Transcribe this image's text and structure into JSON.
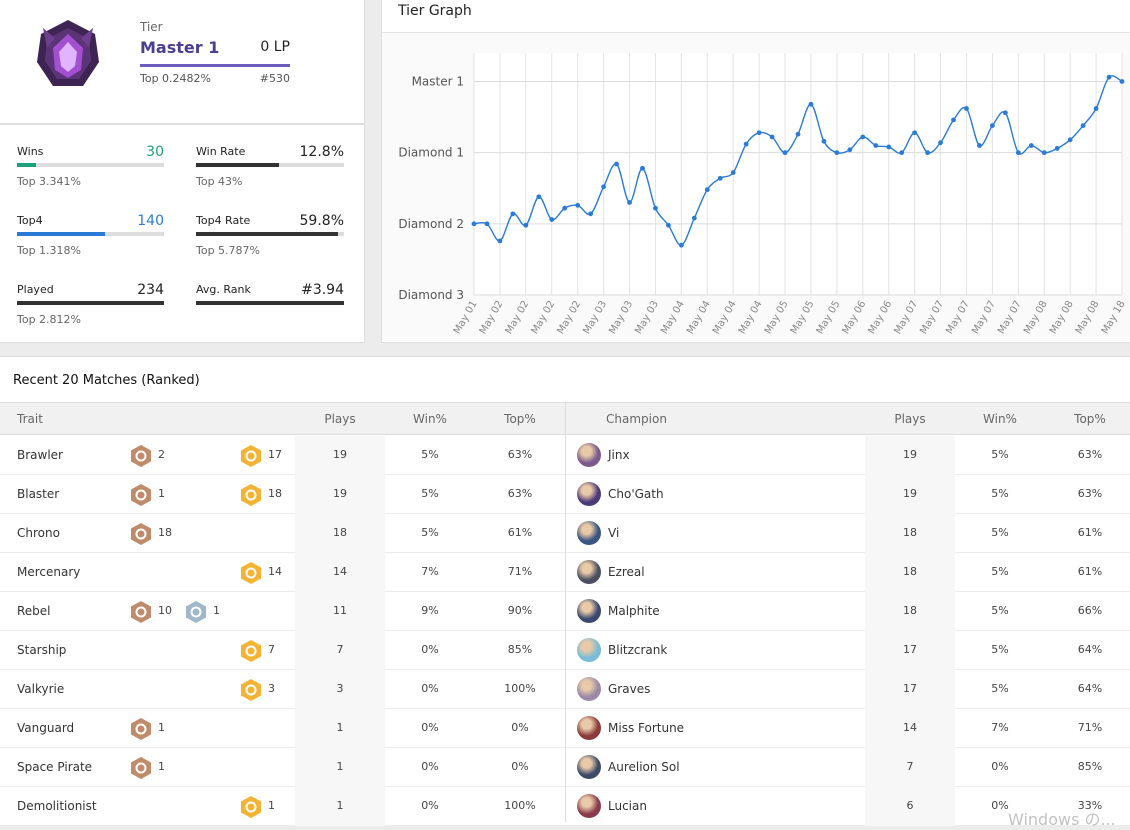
{
  "tier": {
    "label": "Tier",
    "name": "Master 1",
    "lp": "0 LP",
    "top": "Top 0.2482%",
    "rank": "#530"
  },
  "stats": [
    {
      "label": "Wins",
      "value": "30",
      "sub": "Top 3.341%",
      "progress": 0.13,
      "color": "#1aa37a"
    },
    {
      "label": "Win Rate",
      "value": "12.8%",
      "sub": "Top 43%",
      "progress": 0.56,
      "color": "#333333"
    },
    {
      "label": "Top4",
      "value": "140",
      "sub": "Top 1.318%",
      "progress": 0.6,
      "color": "#2a7bd6"
    },
    {
      "label": "Top4 Rate",
      "value": "59.8%",
      "sub": "Top 5.787%",
      "progress": 0.96,
      "color": "#333333"
    },
    {
      "label": "Played",
      "value": "234",
      "sub": "Top 2.812%",
      "progress": 1.0,
      "color": "#333333"
    },
    {
      "label": "Avg. Rank",
      "value": "#3.94",
      "sub": "",
      "progress": 1.0,
      "color": "#333333"
    }
  ],
  "graph": {
    "title": "Tier Graph"
  },
  "chart_data": {
    "type": "line",
    "title": "Tier Graph",
    "y_tick_labels": [
      "Master 1",
      "Diamond 1",
      "Diamond 2",
      "Diamond 3"
    ],
    "y_tick_values": [
      3,
      2,
      1,
      0
    ],
    "ylim": [
      0,
      3.4
    ],
    "x_tick_labels": [
      "May 01",
      "May 02",
      "May 02",
      "May 02",
      "May 02",
      "May 03",
      "May 03",
      "May 03",
      "May 04",
      "May 04",
      "May 04",
      "May 04",
      "May 05",
      "May 05",
      "May 05",
      "May 06",
      "May 06",
      "May 07",
      "May 07",
      "May 07",
      "May 07",
      "May 07",
      "May 08",
      "May 08",
      "May 08",
      "May 18"
    ],
    "series": [
      {
        "color": "#2a7bd6",
        "values": [
          1.0,
          1.0,
          0.76,
          1.14,
          0.98,
          1.38,
          1.06,
          1.22,
          1.26,
          1.14,
          1.52,
          1.84,
          1.3,
          1.78,
          1.22,
          0.98,
          0.7,
          1.08,
          1.48,
          1.64,
          1.72,
          2.12,
          2.28,
          2.22,
          2.0,
          2.26,
          2.68,
          2.16,
          2.0,
          2.04,
          2.22,
          2.1,
          2.08,
          2.0,
          2.28,
          2.0,
          2.14,
          2.46,
          2.62,
          2.1,
          2.38,
          2.56,
          2.0,
          2.1,
          2.0,
          2.06,
          2.18,
          2.38,
          2.62,
          3.06,
          3.0
        ]
      }
    ],
    "grid": true
  },
  "matches": {
    "title": "Recent 20 Matches (Ranked)",
    "trait_headers": {
      "name": "Trait",
      "plays": "Plays",
      "win": "Win%",
      "top": "Top%"
    },
    "champion_headers": {
      "name": "Champion",
      "plays": "Plays",
      "win": "Win%",
      "top": "Top%"
    },
    "traits": [
      {
        "name": "Brawler",
        "b1": "2",
        "b1_color": "#c08b6a",
        "b2": "17",
        "b2_color": "#f5b334",
        "plays": "19",
        "win": "5%",
        "top": "63%"
      },
      {
        "name": "Blaster",
        "b1": "1",
        "b1_color": "#c08b6a",
        "b2": "18",
        "b2_color": "#f5b334",
        "plays": "19",
        "win": "5%",
        "top": "63%"
      },
      {
        "name": "Chrono",
        "b1": "18",
        "b1_color": "#c08b6a",
        "b2": "",
        "b2_color": "",
        "plays": "18",
        "win": "5%",
        "top": "61%"
      },
      {
        "name": "Mercenary",
        "b1": "",
        "b1_color": "",
        "b2": "14",
        "b2_color": "#f5b334",
        "plays": "14",
        "win": "7%",
        "top": "71%"
      },
      {
        "name": "Rebel",
        "b1": "10",
        "b1_color": "#c08b6a",
        "b2": "1",
        "b2_color": "#9fb7c8",
        "plays": "11",
        "win": "9%",
        "top": "90%"
      },
      {
        "name": "Starship",
        "b1": "",
        "b1_color": "",
        "b2": "7",
        "b2_color": "#f5b334",
        "plays": "7",
        "win": "0%",
        "top": "85%"
      },
      {
        "name": "Valkyrie",
        "b1": "",
        "b1_color": "",
        "b2": "3",
        "b2_color": "#f5b334",
        "plays": "3",
        "win": "0%",
        "top": "100%"
      },
      {
        "name": "Vanguard",
        "b1": "1",
        "b1_color": "#c08b6a",
        "b2": "",
        "b2_color": "",
        "plays": "1",
        "win": "0%",
        "top": "0%"
      },
      {
        "name": "Space Pirate",
        "b1": "1",
        "b1_color": "#c08b6a",
        "b2": "",
        "b2_color": "",
        "plays": "1",
        "win": "0%",
        "top": "0%"
      },
      {
        "name": "Demolitionist",
        "b1": "",
        "b1_color": "",
        "b2": "1",
        "b2_color": "#f5b334",
        "plays": "1",
        "win": "0%",
        "top": "100%"
      }
    ],
    "champions": [
      {
        "name": "Jinx",
        "color": "#7a5a8c",
        "plays": "19",
        "win": "5%",
        "top": "63%"
      },
      {
        "name": "Cho'Gath",
        "color": "#4b3a7a",
        "plays": "19",
        "win": "5%",
        "top": "63%"
      },
      {
        "name": "Vi",
        "color": "#3a5580",
        "plays": "18",
        "win": "5%",
        "top": "61%"
      },
      {
        "name": "Ezreal",
        "color": "#4a4f60",
        "plays": "18",
        "win": "5%",
        "top": "61%"
      },
      {
        "name": "Malphite",
        "color": "#3a4870",
        "plays": "18",
        "win": "5%",
        "top": "66%"
      },
      {
        "name": "Blitzcrank",
        "color": "#79bcd6",
        "plays": "17",
        "win": "5%",
        "top": "64%"
      },
      {
        "name": "Graves",
        "color": "#9a8aa8",
        "plays": "17",
        "win": "5%",
        "top": "64%"
      },
      {
        "name": "Miss Fortune",
        "color": "#8a3a3a",
        "plays": "14",
        "win": "7%",
        "top": "71%"
      },
      {
        "name": "Aurelion Sol",
        "color": "#3c4a66",
        "plays": "7",
        "win": "0%",
        "top": "85%"
      },
      {
        "name": "Lucian",
        "color": "#8a3a4a",
        "plays": "6",
        "win": "0%",
        "top": "33%"
      }
    ]
  },
  "watermark": "Windows の..."
}
